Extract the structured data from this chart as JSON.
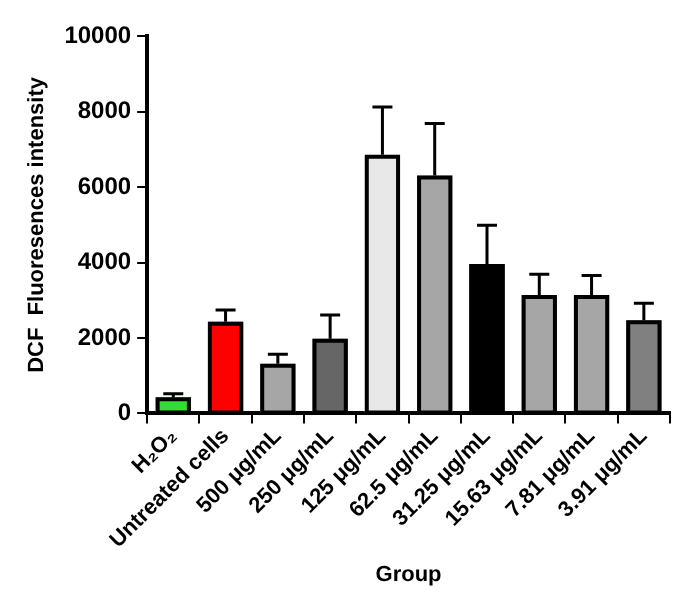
{
  "chart_data": {
    "type": "bar",
    "xlabel": "Group",
    "ylabel": "DCF  Fluoresences intensity",
    "categories": [
      "H₂O₂",
      "Untreated cells",
      "500 μg/mL",
      "250 μg/mL",
      "125 μg/mL",
      "62.5 μg/mL",
      "31.25 μg/mL",
      "15.63 μg/mL",
      "7.81 μg/mL",
      "3.91 μg/mL"
    ],
    "values": [
      430,
      2430,
      1320,
      1980,
      6860,
      6310,
      3960,
      3140,
      3140,
      2470
    ],
    "colors": [
      "#33dd33",
      "#ff0000",
      "#a6a6a6",
      "#666666",
      "#e8e8e8",
      "#a6a6a6",
      "#000000",
      "#a6a6a6",
      "#a6a6a6",
      "#808080"
    ],
    "errors": [
      [
        430,
        520
      ],
      [
        2430,
        2740
      ],
      [
        1320,
        1570
      ],
      [
        1980,
        2610
      ],
      [
        6860,
        8130
      ],
      [
        6310,
        7690
      ],
      [
        3960,
        4990
      ],
      [
        3140,
        3690
      ],
      [
        3140,
        3660
      ],
      [
        2470,
        2920
      ]
    ],
    "ylim": [
      0,
      10000
    ],
    "yticks": [
      0,
      2000,
      4000,
      6000,
      8000,
      10000
    ],
    "grid": false,
    "legend": false
  }
}
